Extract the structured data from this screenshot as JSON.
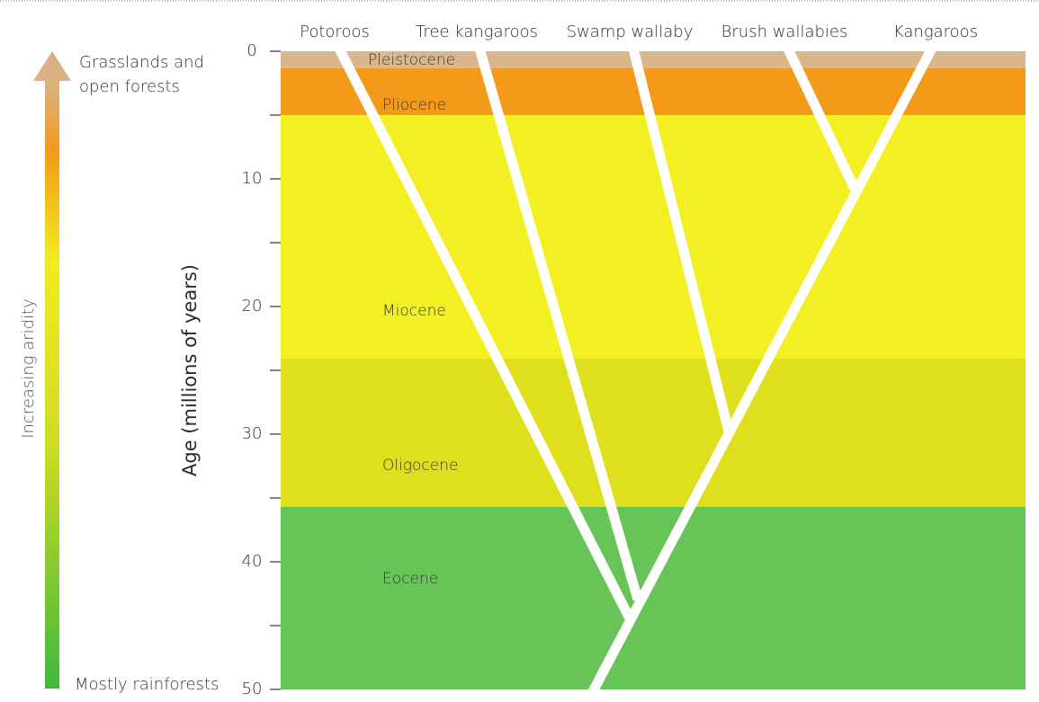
{
  "axis": {
    "title": "Age (millions of years)",
    "ticks": [
      0,
      10,
      20,
      30,
      40,
      50
    ]
  },
  "taxa": [
    "Potoroos",
    "Tree kangaroos",
    "Swamp wallaby",
    "Brush wallabies",
    "Kangaroos"
  ],
  "epochs": [
    "Pleistocene",
    "Pliocene",
    "Miocene",
    "Oligocene",
    "Eocene"
  ],
  "aridity": {
    "label": "Increasing aridity",
    "top": [
      "Grasslands and",
      "open forests"
    ],
    "bottom": "Mostly rainforests"
  }
}
